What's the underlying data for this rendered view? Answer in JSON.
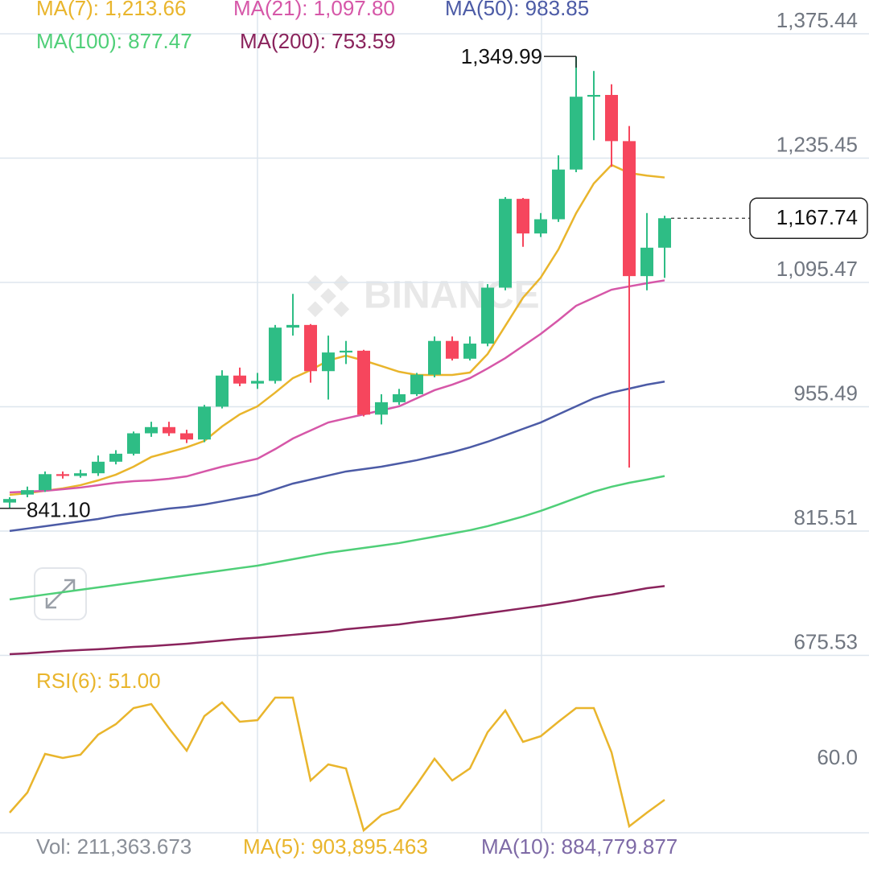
{
  "chart_data": [
    {
      "type": "candlestick",
      "watermark": "BINANCE",
      "open": [
        847.6,
        856.6,
        861.6,
        879.6,
        877.6,
        880.6,
        893.6,
        902.6,
        925.6,
        932.6,
        925.6,
        918.6,
        955.6,
        990.6,
        981.6,
        984.6,
        1044.6,
        1047.6,
        995.6,
        1016.6,
        1018.6,
        946.6,
        960.6,
        969.6,
        991.6,
        1029.6,
        1009.6,
        1026.6,
        1089.6,
        1189.6,
        1150.6,
        1166.6,
        1222.6,
        1304.6,
        1306.6,
        1254.6,
        1102.6,
        1134.6
      ],
      "high": [
        853.6,
        865.6,
        882.6,
        882.6,
        884.6,
        900.6,
        906.6,
        927.6,
        938.6,
        938.6,
        929.6,
        957.6,
        996.6,
        999.6,
        993.6,
        1047.6,
        1082.6,
        1048.6,
        1035.6,
        1029.6,
        1019.6,
        969.6,
        975.6,
        993.6,
        1034.6,
        1034.6,
        1034.6,
        1093.6,
        1191.6,
        1190.6,
        1173.6,
        1238.6,
        1349.99,
        1333.6,
        1318.6,
        1271.6,
        1173.6,
        1170.6
      ],
      "low": [
        841.1,
        853.6,
        859.6,
        874.6,
        875.6,
        877.6,
        890.6,
        900.6,
        921.6,
        922.6,
        914.6,
        915.6,
        953.6,
        978.6,
        975.6,
        981.6,
        1035.6,
        982.6,
        963.6,
        1003.6,
        944.6,
        935.6,
        957.6,
        967.6,
        988.6,
        1007.6,
        1007.6,
        1023.6,
        1086.6,
        1135.6,
        1146.6,
        1163.6,
        1219.6,
        1255.6,
        1225.6,
        887.0,
        1086.6,
        1100.6
      ],
      "close": [
        851.6,
        861.6,
        879.6,
        877.6,
        880.6,
        893.6,
        902.6,
        925.6,
        932.6,
        925.6,
        918.6,
        955.6,
        990.6,
        981.6,
        984.6,
        1044.6,
        1047.6,
        995.6,
        1016.6,
        1018.6,
        946.6,
        960.6,
        969.6,
        991.6,
        1029.6,
        1009.6,
        1026.6,
        1089.6,
        1189.6,
        1150.6,
        1166.6,
        1222.6,
        1304.6,
        1306.6,
        1254.6,
        1102.6,
        1134.6,
        1167.74
      ],
      "up_color": "#2ebd85",
      "down_color": "#f6465d",
      "high_label": "1,349.99",
      "low_label": "841.10",
      "last_label": "1,167.74",
      "series": [
        {
          "name": "MA(7): 1,213.66",
          "color": "#e9b52c",
          "values": [
            856.3,
            858.1,
            860.9,
            863.6,
            867.2,
            872.6,
            879.0,
            888.0,
            898.9,
            904.3,
            909.8,
            917.0,
            933.3,
            946.9,
            956.0,
            971.4,
            987.7,
            996.7,
            1007.6,
            1013.0,
            1007.6,
            1001.3,
            994.9,
            991.3,
            991.3,
            991.3,
            994.0,
            1014.9,
            1046.6,
            1078.3,
            1100.9,
            1132.6,
            1173.4,
            1206.9,
            1227.8,
            1218.7,
            1215.8,
            1213.66
          ]
        },
        {
          "name": "MA(21): 1,097.80",
          "color": "#d657a8",
          "values": [
            859.0,
            859.9,
            860.8,
            862.6,
            864.5,
            867.2,
            869.9,
            871.7,
            872.6,
            874.4,
            877.1,
            882.6,
            888.0,
            892.5,
            897.0,
            907.8,
            919.7,
            928.8,
            937.8,
            942.4,
            946.9,
            951.4,
            956.0,
            965.0,
            974.1,
            980.4,
            987.7,
            998.6,
            1010.3,
            1023.9,
            1037.5,
            1052.9,
            1069.2,
            1078.3,
            1087.3,
            1091.0,
            1094.6,
            1097.8
          ]
        },
        {
          "name": "MA(50): 983.85",
          "color": "#4c5ba6",
          "values": [
            815.6,
            818.3,
            821.0,
            823.7,
            826.4,
            829.1,
            832.8,
            835.5,
            838.2,
            840.9,
            842.7,
            845.4,
            849.0,
            852.7,
            856.3,
            862.6,
            869.0,
            873.5,
            878.1,
            882.6,
            885.3,
            888.0,
            891.6,
            895.3,
            899.8,
            904.3,
            909.8,
            916.1,
            923.3,
            930.6,
            937.8,
            946.9,
            956.0,
            965.0,
            971.4,
            975.9,
            980.4,
            983.85
          ]
        },
        {
          "name": "MA(100): 877.47",
          "color": "#4fcf78",
          "values": [
            738.5,
            741.2,
            744.0,
            746.7,
            749.4,
            752.1,
            754.8,
            757.5,
            760.3,
            763.0,
            765.7,
            768.4,
            771.1,
            773.9,
            776.6,
            780.2,
            783.8,
            787.5,
            791.1,
            793.8,
            796.5,
            799.2,
            802.0,
            805.6,
            809.2,
            812.8,
            816.5,
            821.0,
            826.4,
            831.9,
            838.2,
            845.4,
            852.7,
            859.9,
            865.4,
            869.9,
            873.5,
            877.47
          ]
        },
        {
          "name": "MA(200): 753.59",
          "color": "#8a235c",
          "values": [
            676.9,
            677.8,
            679.2,
            680.5,
            681.5,
            682.4,
            683.7,
            685.1,
            686.0,
            687.3,
            688.7,
            690.5,
            692.3,
            694.1,
            695.5,
            696.9,
            698.7,
            700.5,
            702.3,
            705.0,
            706.8,
            708.6,
            710.4,
            713.1,
            715.4,
            717.7,
            720.4,
            723.1,
            725.8,
            728.6,
            731.3,
            734.3,
            737.6,
            741.2,
            744.0,
            747.6,
            751.2,
            753.59
          ]
        }
      ],
      "ylim": [
        661.5,
        1413.5
      ],
      "yticks": [
        {
          "value": 1375.44,
          "label": "1,375.44"
        },
        {
          "value": 1235.45,
          "label": "1,235.45"
        },
        {
          "value": 1095.47,
          "label": "1,095.47"
        },
        {
          "value": 955.49,
          "label": "955.49"
        },
        {
          "value": 815.51,
          "label": "815.51"
        },
        {
          "value": 675.53,
          "label": "675.53"
        }
      ],
      "grid": true
    },
    {
      "type": "line",
      "title": "RSI(6): 51.00",
      "series": [
        {
          "name": "RSI(6)",
          "color": "#e9b52c",
          "values": [
            47.0,
            53.25,
            65.25,
            64.0,
            65.0,
            71.25,
            74.5,
            79.5,
            80.75,
            73.25,
            66.25,
            77.0,
            81.25,
            75.25,
            75.75,
            82.75,
            82.75,
            57.0,
            62.0,
            60.75,
            41.5,
            46.25,
            48.25,
            55.75,
            63.75,
            57.0,
            60.75,
            72.0,
            78.75,
            69.0,
            70.75,
            75.25,
            79.5,
            79.5,
            65.75,
            42.75,
            47.0,
            51.0
          ]
        }
      ],
      "ylim": [
        40.75,
        91.75
      ],
      "yticks": [
        {
          "value": 60,
          "label": "60.0"
        }
      ],
      "footer": [
        {
          "text": "Vol: 211,363.673",
          "color": "#8a8f98"
        },
        {
          "text": "MA(5): 903,895.463",
          "color": "#e9b52c"
        },
        {
          "text": "MA(10): 884,779.877",
          "color": "#7e6aa6"
        }
      ]
    }
  ]
}
